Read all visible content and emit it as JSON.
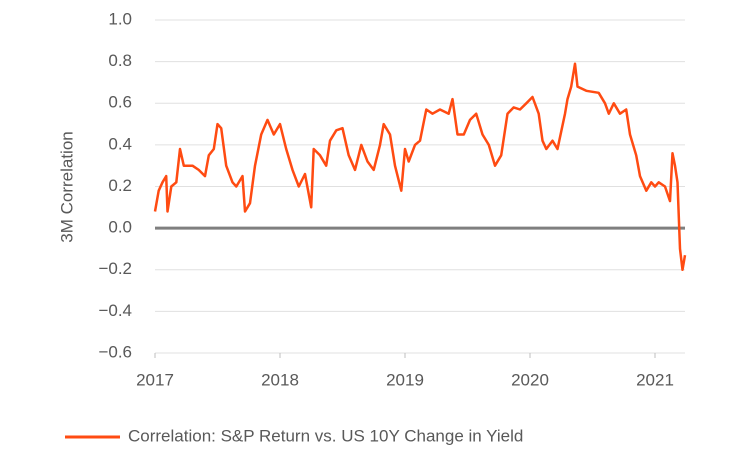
{
  "chart_data": {
    "type": "line",
    "y_label": "3M Correlation",
    "xlim": [
      2017,
      2021.24
    ],
    "xticks": [
      2017,
      2018,
      2019,
      2020,
      2021
    ],
    "ylim": [
      -0.6,
      1
    ],
    "yticks": [
      {
        "value": 1,
        "label": "1.0"
      },
      0.8,
      0.6,
      0.4,
      0.2,
      {
        "value": 0,
        "label": "0.0"
      },
      {
        "value": -0.2,
        "label": "−0.2"
      },
      {
        "value": -0.4,
        "label": "−0.4"
      },
      {
        "value": -0.6,
        "label": "−0.6"
      }
    ],
    "grid": true,
    "legend": "bottom",
    "x": [
      2017.0,
      2017.03,
      2017.06,
      2017.09,
      2017.1,
      2017.13,
      2017.17,
      2017.2,
      2017.23,
      2017.3,
      2017.35,
      2017.4,
      2017.43,
      2017.47,
      2017.5,
      2017.53,
      2017.57,
      2017.62,
      2017.65,
      2017.7,
      2017.72,
      2017.76,
      2017.8,
      2017.85,
      2017.9,
      2017.95,
      2018.0,
      2018.05,
      2018.1,
      2018.15,
      2018.2,
      2018.25,
      2018.27,
      2018.32,
      2018.37,
      2018.4,
      2018.45,
      2018.5,
      2018.55,
      2018.6,
      2018.65,
      2018.7,
      2018.75,
      2018.8,
      2018.83,
      2018.88,
      2018.92,
      2018.97,
      2019.0,
      2019.03,
      2019.08,
      2019.12,
      2019.17,
      2019.22,
      2019.28,
      2019.35,
      2019.38,
      2019.42,
      2019.47,
      2019.52,
      2019.57,
      2019.62,
      2019.67,
      2019.72,
      2019.77,
      2019.82,
      2019.87,
      2019.92,
      2019.97,
      2020.02,
      2020.07,
      2020.1,
      2020.13,
      2020.18,
      2020.22,
      2020.28,
      2020.3,
      2020.33,
      2020.36,
      2020.38,
      2020.45,
      2020.55,
      2020.6,
      2020.63,
      2020.67,
      2020.72,
      2020.77,
      2020.8,
      2020.85,
      2020.88,
      2020.93,
      2020.97,
      2021.0,
      2021.03,
      2021.08,
      2021.12,
      2021.14,
      2021.16,
      2021.18,
      2021.2,
      2021.22,
      2021.24
    ],
    "series": [
      {
        "name": "Correlation: S&P Return vs. US 10Y Change in Yield",
        "color": "#ff4b12",
        "values": [
          0.08,
          0.18,
          0.22,
          0.25,
          0.08,
          0.2,
          0.22,
          0.38,
          0.3,
          0.3,
          0.28,
          0.25,
          0.35,
          0.38,
          0.5,
          0.48,
          0.3,
          0.22,
          0.2,
          0.25,
          0.08,
          0.12,
          0.3,
          0.45,
          0.52,
          0.45,
          0.5,
          0.38,
          0.28,
          0.2,
          0.26,
          0.1,
          0.38,
          0.35,
          0.3,
          0.42,
          0.47,
          0.48,
          0.35,
          0.28,
          0.4,
          0.32,
          0.28,
          0.4,
          0.5,
          0.45,
          0.3,
          0.18,
          0.38,
          0.32,
          0.4,
          0.42,
          0.57,
          0.55,
          0.57,
          0.55,
          0.62,
          0.45,
          0.45,
          0.52,
          0.55,
          0.45,
          0.4,
          0.3,
          0.35,
          0.55,
          0.58,
          0.57,
          0.6,
          0.63,
          0.55,
          0.42,
          0.38,
          0.42,
          0.38,
          0.55,
          0.62,
          0.68,
          0.79,
          0.68,
          0.66,
          0.65,
          0.6,
          0.55,
          0.6,
          0.55,
          0.57,
          0.45,
          0.35,
          0.25,
          0.18,
          0.22,
          0.2,
          0.22,
          0.2,
          0.13,
          0.36,
          0.3,
          0.22,
          -0.1,
          -0.2,
          -0.13
        ]
      }
    ]
  }
}
